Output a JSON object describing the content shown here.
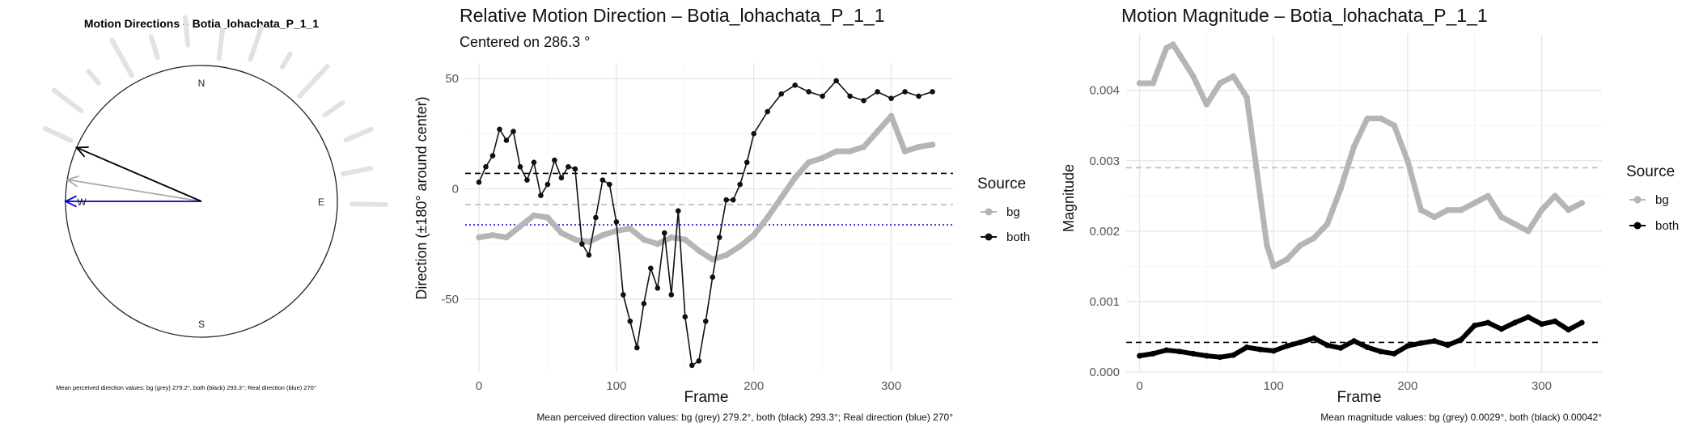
{
  "chart_data": [
    {
      "type": "compass",
      "title": "Motion Directions – Botia_lohachata_P_1_1",
      "cardinals": [
        "N",
        "E",
        "S",
        "W"
      ],
      "arrows": [
        {
          "name": "bg",
          "direction_deg": 279.2,
          "color": "#aaaaaa"
        },
        {
          "name": "both",
          "direction_deg": 293.3,
          "color": "#000000"
        },
        {
          "name": "real",
          "direction_deg": 270,
          "color": "#0000cc"
        }
      ],
      "caption": "Mean perceived direction values: bg (grey) 279.2°, both (black) 293.3°; Real direction (blue) 270°"
    },
    {
      "type": "line",
      "title": "Relative Motion Direction – Botia_lohachata_P_1_1",
      "subtitle": "Centered on  286.3 °",
      "xlabel": "Frame",
      "ylabel": "Direction (±180° around center)",
      "xlim": [
        -10,
        345
      ],
      "ylim": [
        -83,
        57
      ],
      "xticks": [
        "0",
        "100",
        "200",
        "300"
      ],
      "yticks": [
        "50",
        "0",
        "-50"
      ],
      "legend_title": "Source",
      "reference_lines": [
        {
          "series": "both",
          "y": 7.0,
          "style": "dashed",
          "color": "#000000"
        },
        {
          "series": "bg",
          "y": -7.1,
          "style": "dashed",
          "color": "#bbbbbb"
        },
        {
          "series": "real",
          "y": -16.3,
          "style": "dotted",
          "color": "#0000cc"
        }
      ],
      "series": [
        {
          "name": "bg",
          "color": "#b5b5b5",
          "x": [
            0,
            10,
            20,
            30,
            40,
            50,
            60,
            70,
            80,
            90,
            100,
            110,
            120,
            130,
            140,
            150,
            160,
            170,
            180,
            190,
            200,
            210,
            220,
            230,
            240,
            250,
            260,
            270,
            280,
            290,
            300,
            310,
            320,
            330
          ],
          "y": [
            -22,
            -21,
            -22,
            -17,
            -12,
            -13,
            -20,
            -23,
            -24,
            -21,
            -19,
            -18,
            -23,
            -25,
            -22,
            -23,
            -28,
            -32,
            -30,
            -26,
            -21,
            -13,
            -4,
            5,
            12,
            14,
            17,
            17,
            19,
            26,
            33,
            17,
            19,
            20
          ]
        },
        {
          "name": "both",
          "color": "#111111",
          "x": [
            0,
            5,
            10,
            15,
            20,
            25,
            30,
            35,
            40,
            45,
            50,
            55,
            60,
            65,
            70,
            75,
            80,
            85,
            90,
            95,
            100,
            105,
            110,
            115,
            120,
            125,
            130,
            135,
            140,
            145,
            150,
            155,
            160,
            165,
            170,
            175,
            180,
            185,
            190,
            195,
            200,
            210,
            220,
            230,
            240,
            250,
            260,
            270,
            280,
            290,
            300,
            310,
            320,
            330
          ],
          "y": [
            3,
            10,
            15,
            27,
            22,
            26,
            10,
            4,
            12,
            -3,
            2,
            13,
            5,
            10,
            9,
            -25,
            -30,
            -13,
            4,
            2,
            -15,
            -48,
            -60,
            -72,
            -52,
            -36,
            -45,
            -20,
            -48,
            -10,
            -58,
            -80,
            -78,
            -60,
            -40,
            -22,
            -5,
            -5,
            2,
            12,
            25,
            35,
            43,
            47,
            44,
            42,
            49,
            42,
            40,
            44,
            41,
            44,
            42,
            44
          ]
        }
      ],
      "caption": "Mean perceived direction values: bg (grey) 279.2°, both (black) 293.3°; Real direction (blue) 270°"
    },
    {
      "type": "line",
      "title": "Motion Magnitude – Botia_lohachata_P_1_1",
      "xlabel": "Frame",
      "ylabel": "Magnitude",
      "xlim": [
        -10,
        345
      ],
      "ylim": [
        0,
        0.0048
      ],
      "xticks": [
        "0",
        "100",
        "200",
        "300"
      ],
      "yticks": [
        "0.004",
        "0.003",
        "0.002",
        "0.001",
        "0.000"
      ],
      "legend_title": "Source",
      "reference_lines": [
        {
          "series": "bg",
          "y": 0.0029,
          "style": "dashed",
          "color": "#bbbbbb"
        },
        {
          "series": "both",
          "y": 0.00042,
          "style": "dashed",
          "color": "#000000"
        }
      ],
      "series": [
        {
          "name": "bg",
          "color": "#b5b5b5",
          "x": [
            0,
            10,
            20,
            25,
            30,
            40,
            50,
            60,
            70,
            80,
            90,
            95,
            100,
            110,
            120,
            130,
            140,
            150,
            160,
            170,
            180,
            190,
            200,
            210,
            220,
            230,
            240,
            250,
            260,
            270,
            280,
            290,
            300,
            310,
            320,
            330
          ],
          "y": [
            0.0041,
            0.0041,
            0.0046,
            0.00465,
            0.0045,
            0.0042,
            0.0038,
            0.0041,
            0.0042,
            0.0039,
            0.0025,
            0.0018,
            0.0015,
            0.0016,
            0.0018,
            0.0019,
            0.0021,
            0.0026,
            0.0032,
            0.0036,
            0.0036,
            0.0035,
            0.003,
            0.0023,
            0.0022,
            0.0023,
            0.0023,
            0.0024,
            0.0025,
            0.0022,
            0.0021,
            0.002,
            0.0023,
            0.0025,
            0.0023,
            0.0024
          ]
        },
        {
          "name": "both",
          "color": "#000000",
          "x": [
            0,
            10,
            20,
            30,
            40,
            50,
            60,
            70,
            80,
            90,
            100,
            110,
            120,
            130,
            140,
            150,
            160,
            170,
            180,
            190,
            200,
            210,
            220,
            230,
            240,
            250,
            260,
            270,
            280,
            290,
            300,
            310,
            320,
            330
          ],
          "y": [
            0.00023,
            0.00026,
            0.00031,
            0.00029,
            0.00026,
            0.00023,
            0.00021,
            0.00024,
            0.00035,
            0.00032,
            0.0003,
            0.00037,
            0.00042,
            0.00048,
            0.00038,
            0.00034,
            0.00044,
            0.00035,
            0.00029,
            0.00026,
            0.00037,
            0.00041,
            0.00044,
            0.00038,
            0.00046,
            0.00066,
            0.0007,
            0.00061,
            0.0007,
            0.00078,
            0.00068,
            0.00072,
            0.0006,
            0.0007
          ]
        }
      ],
      "caption": "Mean magnitude values: bg (grey) 0.0029°, both (black) 0.00042°"
    }
  ]
}
